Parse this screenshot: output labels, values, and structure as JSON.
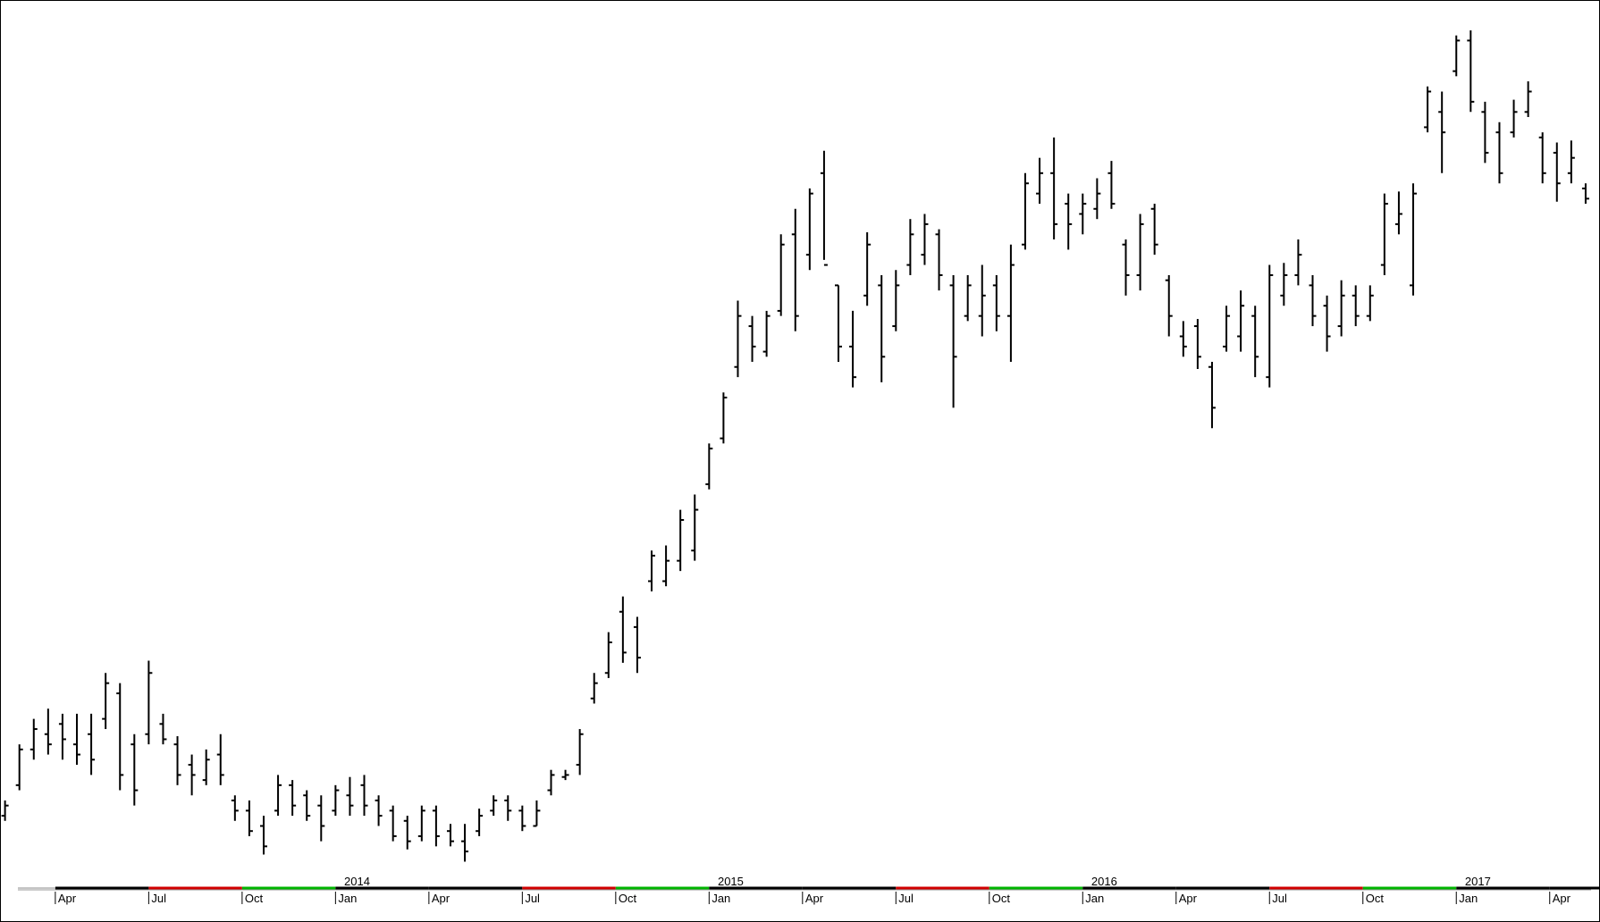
{
  "chart_data": {
    "type": "ohlc",
    "color": "#000000",
    "axis_band_colors": {
      "Jul": "#d00000",
      "Oct": "#00b400"
    },
    "xlim": [
      -0.7,
      222
    ],
    "ylim": [
      0,
      868
    ],
    "xticks": [
      {
        "value": 7,
        "label": "Apr"
      },
      {
        "value": 20,
        "label": "Jul"
      },
      {
        "value": 33,
        "label": "Oct"
      },
      {
        "value": 46,
        "label": "Jan"
      },
      {
        "value": 59,
        "label": "Apr"
      },
      {
        "value": 72,
        "label": "Jul"
      },
      {
        "value": 85,
        "label": "Oct"
      },
      {
        "value": 98,
        "label": "Jan"
      },
      {
        "value": 111,
        "label": "Apr"
      },
      {
        "value": 124,
        "label": "Jul"
      },
      {
        "value": 137,
        "label": "Oct"
      },
      {
        "value": 150,
        "label": "Jan"
      },
      {
        "value": 163,
        "label": "Apr"
      },
      {
        "value": 176,
        "label": "Jul"
      },
      {
        "value": 189,
        "label": "Oct"
      },
      {
        "value": 202,
        "label": "Jan"
      },
      {
        "value": 215,
        "label": "Apr"
      }
    ],
    "year_ticks": [
      {
        "value": 49,
        "label": "2014"
      },
      {
        "value": 101,
        "label": "2015"
      },
      {
        "value": 153,
        "label": "2016"
      },
      {
        "value": 205,
        "label": "2017"
      }
    ],
    "x": [
      0,
      2,
      4,
      6,
      8,
      10,
      12,
      14,
      16,
      18,
      20,
      22,
      24,
      26,
      28,
      30,
      32,
      34,
      36,
      38,
      40,
      42,
      44,
      46,
      48,
      50,
      52,
      54,
      56,
      58,
      60,
      62,
      64,
      66,
      68,
      70,
      72,
      74,
      76,
      78,
      80,
      82,
      84,
      86,
      88,
      90,
      92,
      94,
      96,
      98,
      100,
      102,
      104,
      106,
      108,
      110,
      112,
      114,
      116,
      118,
      120,
      122,
      124,
      126,
      128,
      130,
      132,
      134,
      136,
      138,
      140,
      142,
      144,
      146,
      148,
      150,
      152,
      154,
      156,
      158,
      160,
      162,
      164,
      166,
      168,
      170,
      172,
      174,
      176,
      178,
      180,
      182,
      184,
      186,
      188,
      190,
      192,
      194,
      196,
      198,
      200,
      202,
      204,
      206,
      208,
      210,
      212,
      214,
      216,
      218,
      220
    ],
    "open": [
      70,
      100,
      135,
      150,
      160,
      140,
      150,
      165,
      190,
      140,
      150,
      160,
      140,
      120,
      105,
      130,
      85,
      75,
      60,
      75,
      100,
      90,
      80,
      75,
      90,
      100,
      85,
      75,
      65,
      50,
      75,
      55,
      45,
      55,
      75,
      85,
      75,
      60,
      95,
      108,
      120,
      185,
      210,
      270,
      255,
      300,
      300,
      320,
      330,
      395,
      440,
      510,
      550,
      525,
      565,
      640,
      620,
      700,
      590,
      530,
      580,
      590,
      550,
      610,
      620,
      640,
      590,
      560,
      560,
      590,
      560,
      630,
      680,
      700,
      670,
      660,
      665,
      700,
      630,
      600,
      665,
      595,
      540,
      550,
      510,
      530,
      540,
      560,
      500,
      580,
      600,
      590,
      570,
      550,
      580,
      560,
      610,
      650,
      590,
      745,
      760,
      800,
      830,
      760,
      740,
      740,
      760,
      735,
      720,
      700,
      685
    ],
    "high": [
      85,
      140,
      165,
      175,
      170,
      170,
      170,
      210,
      200,
      150,
      222,
      170,
      148,
      130,
      135,
      150,
      90,
      85,
      70,
      110,
      105,
      95,
      90,
      100,
      108,
      110,
      90,
      80,
      70,
      80,
      80,
      62,
      62,
      77,
      90,
      90,
      80,
      85,
      115,
      115,
      155,
      210,
      250,
      285,
      265,
      330,
      335,
      370,
      385,
      435,
      485,
      575,
      560,
      565,
      640,
      665,
      685,
      722,
      590,
      565,
      642,
      600,
      605,
      655,
      660,
      645,
      600,
      600,
      610,
      600,
      630,
      700,
      715,
      735,
      680,
      680,
      695,
      712,
      635,
      660,
      670,
      600,
      555,
      557,
      515,
      570,
      585,
      570,
      610,
      612,
      635,
      600,
      580,
      595,
      590,
      590,
      680,
      682,
      690,
      785,
      780,
      835,
      840,
      770,
      750,
      772,
      790,
      740,
      730,
      732,
      690
    ],
    "low": [
      65,
      95,
      125,
      130,
      125,
      120,
      110,
      155,
      95,
      80,
      140,
      140,
      100,
      90,
      100,
      100,
      65,
      50,
      32,
      70,
      70,
      65,
      45,
      70,
      70,
      70,
      60,
      45,
      37,
      45,
      40,
      40,
      25,
      50,
      70,
      65,
      55,
      60,
      90,
      105,
      110,
      180,
      205,
      220,
      210,
      290,
      295,
      310,
      320,
      390,
      435,
      500,
      515,
      520,
      560,
      545,
      605,
      615,
      515,
      490,
      570,
      495,
      545,
      600,
      610,
      585,
      470,
      555,
      540,
      545,
      515,
      625,
      670,
      635,
      625,
      640,
      655,
      665,
      580,
      585,
      620,
      540,
      520,
      508,
      450,
      525,
      525,
      500,
      490,
      570,
      590,
      550,
      525,
      540,
      550,
      555,
      600,
      640,
      580,
      740,
      700,
      795,
      760,
      710,
      690,
      735,
      755,
      690,
      672,
      690,
      670
    ],
    "close": [
      80,
      135,
      155,
      140,
      145,
      130,
      125,
      200,
      110,
      95,
      210,
      145,
      110,
      110,
      125,
      110,
      75,
      55,
      40,
      100,
      80,
      70,
      60,
      95,
      80,
      80,
      70,
      50,
      45,
      75,
      50,
      45,
      35,
      70,
      85,
      75,
      60,
      75,
      110,
      110,
      150,
      200,
      240,
      230,
      225,
      325,
      320,
      360,
      370,
      430,
      480,
      560,
      530,
      560,
      630,
      560,
      680,
      610,
      530,
      500,
      630,
      520,
      590,
      640,
      650,
      600,
      520,
      590,
      580,
      560,
      610,
      690,
      700,
      650,
      650,
      670,
      680,
      670,
      600,
      650,
      630,
      560,
      530,
      520,
      470,
      560,
      570,
      520,
      600,
      600,
      620,
      560,
      540,
      580,
      560,
      580,
      670,
      660,
      680,
      780,
      740,
      830,
      770,
      720,
      700,
      760,
      780,
      700,
      690,
      715,
      675
    ]
  }
}
